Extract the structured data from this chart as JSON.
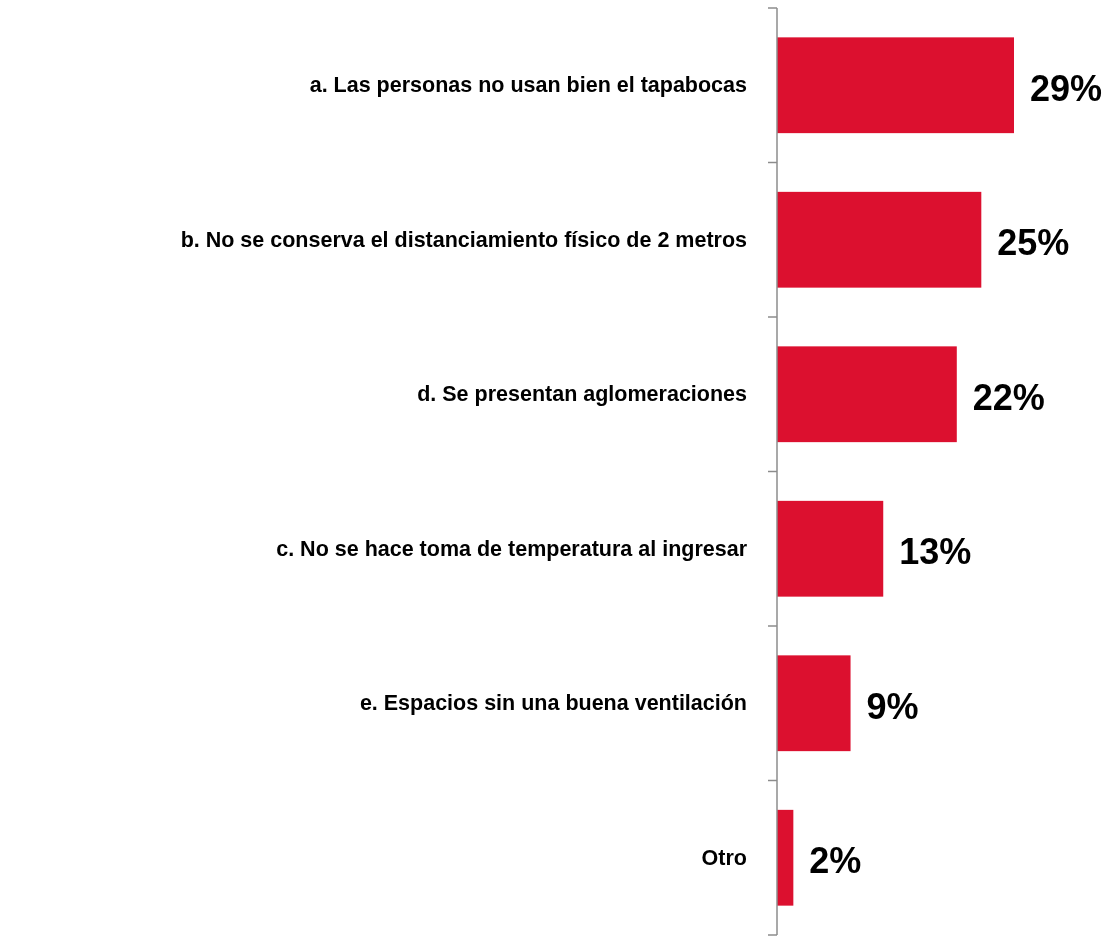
{
  "chart_data": {
    "type": "bar",
    "orientation": "horizontal",
    "categories": [
      "a. Las personas no usan bien el tapabocas",
      "b. No se conserva el distanciamiento físico de 2 metros",
      "d. Se presentan aglomeraciones",
      "c. No se hace toma de temperatura al ingresar",
      "e. Espacios sin una buena ventilación",
      "Otro"
    ],
    "values": [
      29,
      25,
      22,
      13,
      9,
      2
    ],
    "value_labels": [
      "29%",
      "25%",
      "22%",
      "13%",
      "9%",
      "2%"
    ],
    "color": "#dc102f"
  }
}
